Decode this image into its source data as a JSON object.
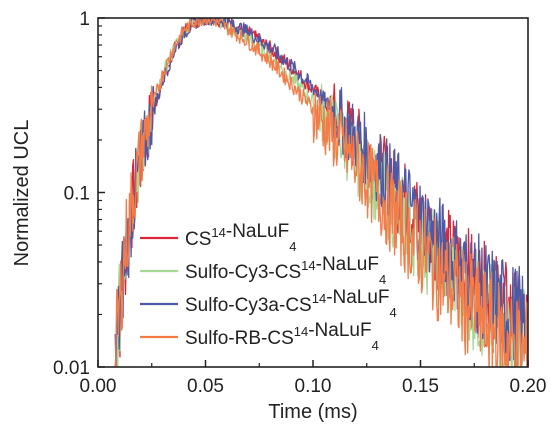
{
  "chart_data": {
    "type": "line",
    "title": "",
    "xlabel": "Time (ms)",
    "ylabel": "Normalized UCL",
    "xlim": [
      0.0,
      0.2
    ],
    "ylim": [
      0.01,
      1
    ],
    "yscale": "log",
    "xticks": [
      0.0,
      0.05,
      0.1,
      0.15,
      0.2
    ],
    "xtick_labels": [
      "0.00",
      "0.05",
      "0.10",
      "0.15",
      "0.20"
    ],
    "yticks": [
      0.01,
      0.1,
      1
    ],
    "ytick_labels": [
      "0.01",
      "0.1",
      "1"
    ],
    "grid": false,
    "legend_position": "bottom-left",
    "series": [
      {
        "name": "CS14-NaLuF4",
        "label_parts": [
          [
            "CS",
            ""
          ],
          [
            "14",
            "sup"
          ],
          [
            "-NaLuF",
            ""
          ],
          [
            "4",
            "sub"
          ]
        ],
        "color": "#d6283a",
        "x": [
          0.008,
          0.012,
          0.016,
          0.02,
          0.025,
          0.03,
          0.035,
          0.04,
          0.045,
          0.05,
          0.055,
          0.06,
          0.07,
          0.08,
          0.09,
          0.1,
          0.11,
          0.12,
          0.13,
          0.14,
          0.15,
          0.16,
          0.17,
          0.18,
          0.19,
          0.2
        ],
        "y": [
          0.01,
          0.038,
          0.085,
          0.155,
          0.28,
          0.44,
          0.64,
          0.83,
          0.95,
          1.0,
          0.985,
          0.94,
          0.82,
          0.67,
          0.52,
          0.39,
          0.28,
          0.2,
          0.14,
          0.098,
          0.068,
          0.048,
          0.035,
          0.026,
          0.02,
          0.016
        ]
      },
      {
        "name": "Sulfo-Cy3-CS14-NaLuF4",
        "label_parts": [
          [
            "Sulfo-Cy3-CS",
            ""
          ],
          [
            "14",
            "sup"
          ],
          [
            "-NaLuF",
            ""
          ],
          [
            "4",
            "sub"
          ]
        ],
        "color": "#a6d996",
        "x": [
          0.008,
          0.012,
          0.016,
          0.02,
          0.025,
          0.03,
          0.035,
          0.04,
          0.045,
          0.05,
          0.055,
          0.06,
          0.07,
          0.08,
          0.09,
          0.1,
          0.11,
          0.12,
          0.13,
          0.14,
          0.15,
          0.16,
          0.17,
          0.18,
          0.19,
          0.2
        ],
        "y": [
          0.01,
          0.04,
          0.09,
          0.165,
          0.29,
          0.46,
          0.66,
          0.84,
          0.96,
          1.0,
          0.97,
          0.9,
          0.76,
          0.6,
          0.45,
          0.33,
          0.23,
          0.16,
          0.11,
          0.076,
          0.054,
          0.038,
          0.028,
          0.021,
          0.016,
          0.013
        ]
      },
      {
        "name": "Sulfo-Cy3a-CS14-NaLuF4",
        "label_parts": [
          [
            "Sulfo-Cy3a-CS",
            ""
          ],
          [
            "14",
            "sup"
          ],
          [
            "-NaLuF",
            ""
          ],
          [
            "4",
            "sub"
          ]
        ],
        "color": "#4f58a4",
        "x": [
          0.008,
          0.012,
          0.016,
          0.02,
          0.025,
          0.03,
          0.035,
          0.04,
          0.045,
          0.05,
          0.055,
          0.06,
          0.07,
          0.08,
          0.09,
          0.1,
          0.11,
          0.12,
          0.13,
          0.14,
          0.15,
          0.16,
          0.17,
          0.18,
          0.19,
          0.2
        ],
        "y": [
          0.01,
          0.037,
          0.083,
          0.152,
          0.275,
          0.435,
          0.63,
          0.82,
          0.945,
          1.0,
          0.99,
          0.95,
          0.83,
          0.68,
          0.53,
          0.4,
          0.29,
          0.205,
          0.145,
          0.1,
          0.07,
          0.05,
          0.036,
          0.027,
          0.021,
          0.017
        ]
      },
      {
        "name": "Sulfo-RB-CS14-NaLuF4",
        "label_parts": [
          [
            "Sulfo-RB-CS",
            ""
          ],
          [
            "14",
            "sup"
          ],
          [
            "-NaLuF",
            ""
          ],
          [
            "4",
            "sub"
          ]
        ],
        "color": "#f47c48",
        "x": [
          0.008,
          0.012,
          0.016,
          0.02,
          0.025,
          0.03,
          0.035,
          0.04,
          0.045,
          0.05,
          0.055,
          0.06,
          0.07,
          0.08,
          0.09,
          0.1,
          0.11,
          0.12,
          0.13,
          0.14,
          0.15,
          0.16,
          0.17,
          0.18,
          0.19,
          0.2
        ],
        "y": [
          0.01,
          0.042,
          0.093,
          0.17,
          0.3,
          0.47,
          0.67,
          0.85,
          0.96,
          1.0,
          0.96,
          0.88,
          0.73,
          0.57,
          0.42,
          0.3,
          0.21,
          0.145,
          0.1,
          0.068,
          0.047,
          0.033,
          0.024,
          0.018,
          0.014,
          0.011
        ]
      }
    ]
  }
}
